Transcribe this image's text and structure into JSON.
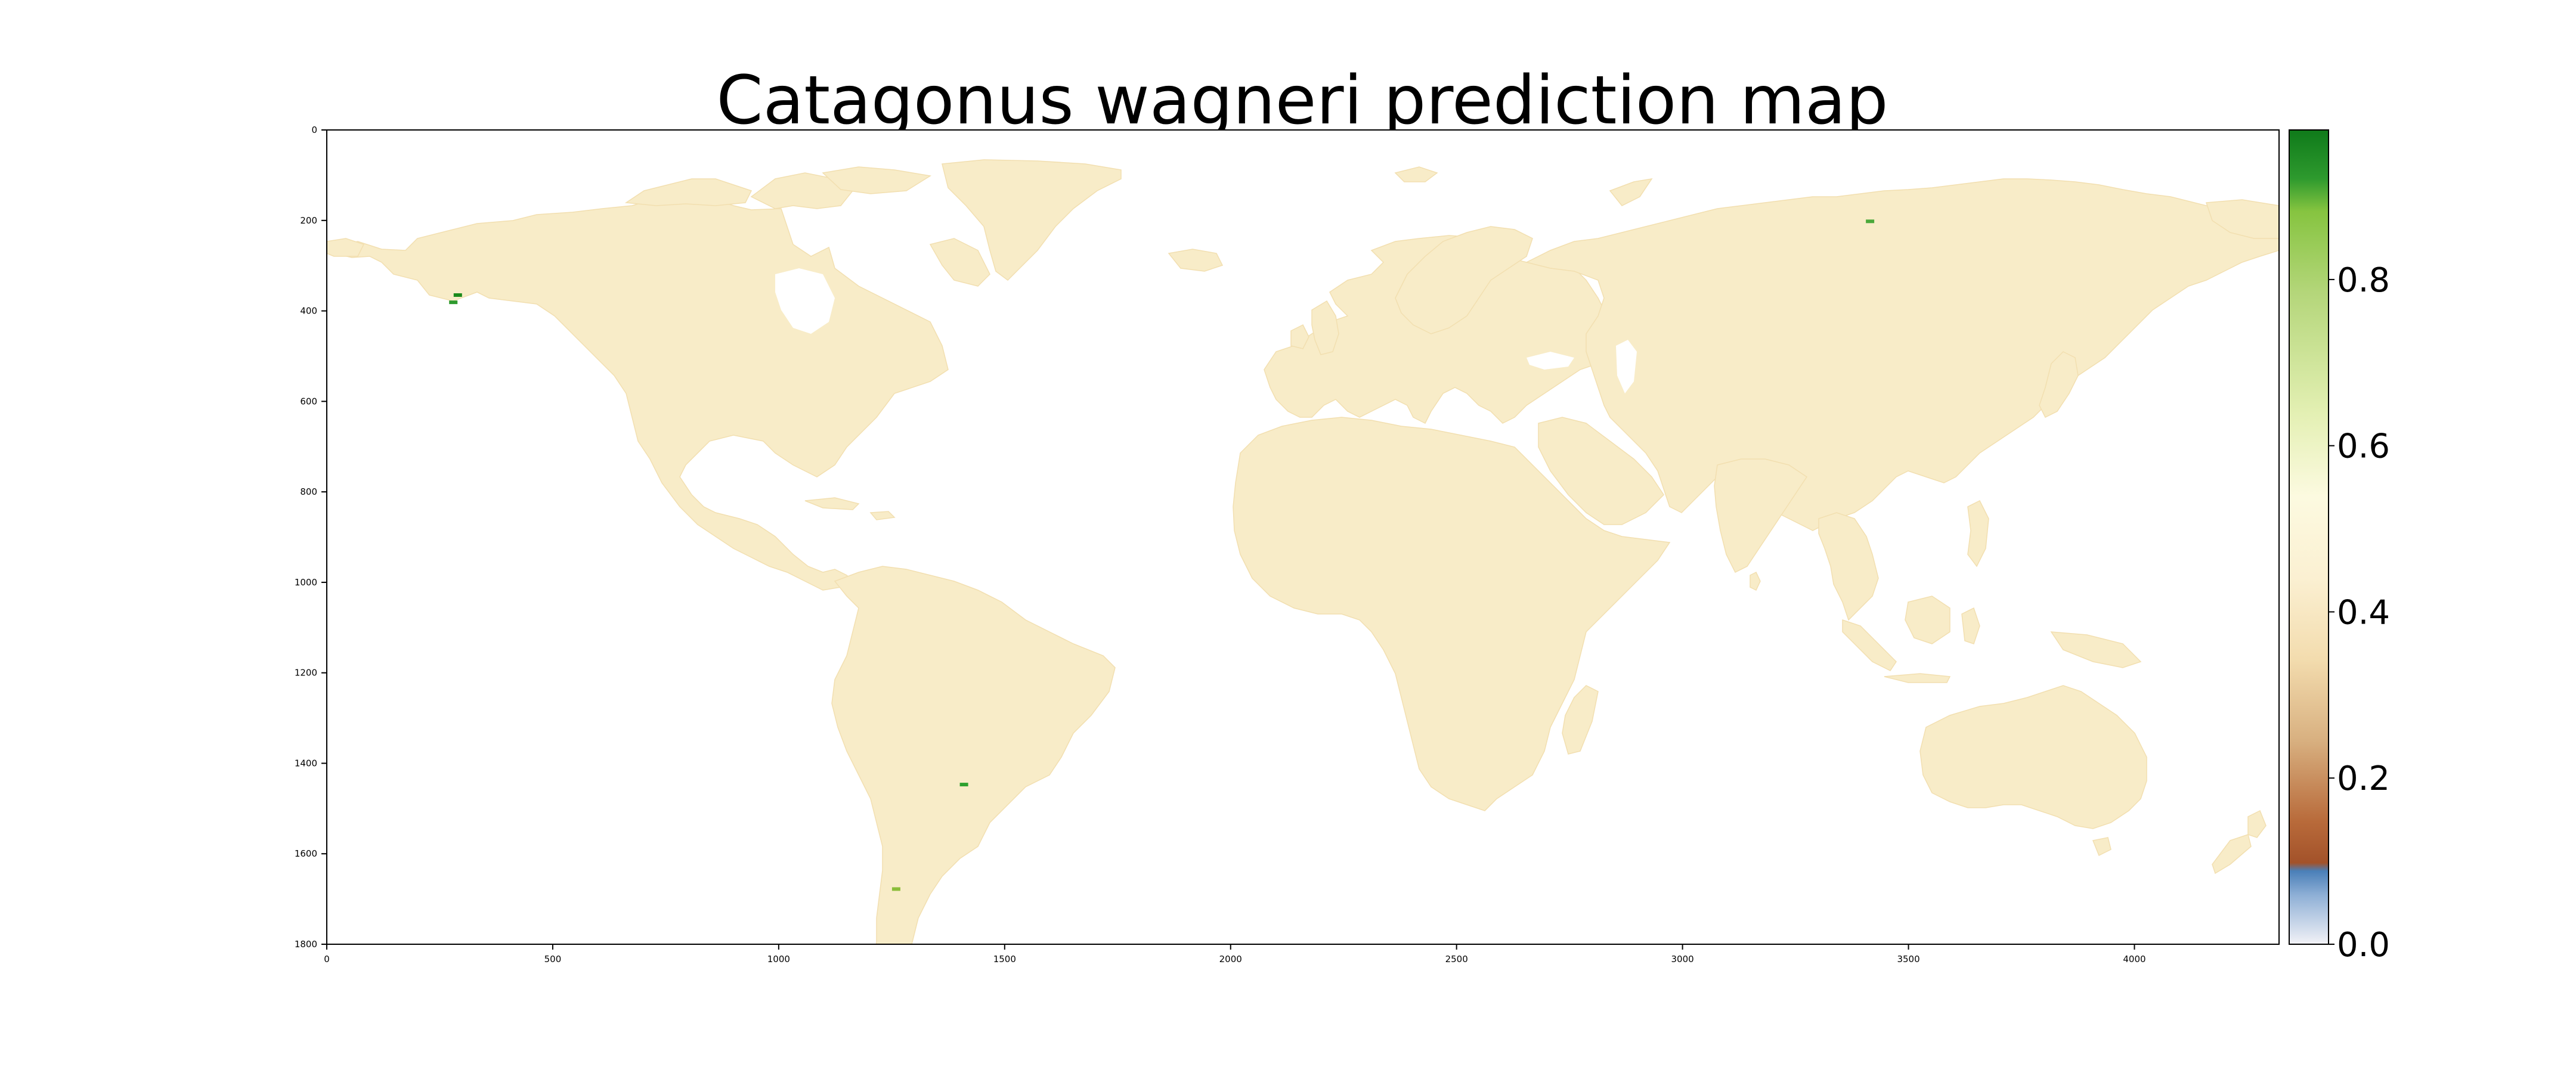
{
  "title": "Catagonus wagneri prediction map",
  "map": {
    "x_ticks": [
      "0",
      "500",
      "1000",
      "1500",
      "2000",
      "2500",
      "3000",
      "3500",
      "4000"
    ],
    "y_ticks": [
      "0",
      "200",
      "400",
      "600",
      "800",
      "1000",
      "1200",
      "1400",
      "1600",
      "1800"
    ],
    "x_range": [
      0,
      4320
    ],
    "y_range": [
      0,
      1800
    ],
    "land_color": "#f8ecc8",
    "land_color_dark": "#f2dfb0",
    "ocean_color": "#ffffff",
    "background_value_approx": 0.4,
    "high_probability_cells": [
      {
        "x": 290,
        "y": 365,
        "color": "#1b8a1b"
      },
      {
        "x": 280,
        "y": 381,
        "color": "#2e9a2e"
      },
      {
        "x": 1410,
        "y": 1447,
        "color": "#2fa12f"
      },
      {
        "x": 3415,
        "y": 202,
        "color": "#4aa83a"
      },
      {
        "x": 1260,
        "y": 1678,
        "color": "#8bbd3a"
      }
    ]
  },
  "colorbar": {
    "ticks": [
      "0.0",
      "0.2",
      "0.4",
      "0.6",
      "0.8"
    ],
    "range": [
      0,
      0.98
    ],
    "colormap": [
      {
        "stop": 0.0,
        "color": "#f2f2f7"
      },
      {
        "stop": 0.06,
        "color": "#8fb0d6"
      },
      {
        "stop": 0.09,
        "color": "#4a7fb8"
      },
      {
        "stop": 0.1,
        "color": "#a3522a"
      },
      {
        "stop": 0.15,
        "color": "#b86a3a"
      },
      {
        "stop": 0.25,
        "color": "#d8b080"
      },
      {
        "stop": 0.35,
        "color": "#f3dcae"
      },
      {
        "stop": 0.45,
        "color": "#fbf0d2"
      },
      {
        "stop": 0.55,
        "color": "#fcfae0"
      },
      {
        "stop": 0.65,
        "color": "#e4f0b4"
      },
      {
        "stop": 0.8,
        "color": "#b4d67a"
      },
      {
        "stop": 0.9,
        "color": "#86c440"
      },
      {
        "stop": 0.94,
        "color": "#2e9a2e"
      },
      {
        "stop": 1.0,
        "color": "#0f7a1a"
      }
    ]
  }
}
